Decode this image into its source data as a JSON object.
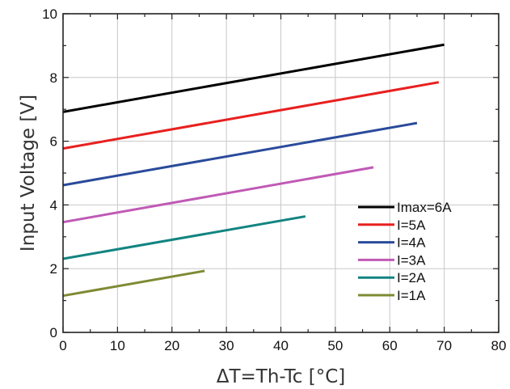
{
  "chart_data": {
    "type": "line",
    "title": "",
    "xlabel": "ΔT=Th-Tc [°C]",
    "ylabel": "Input Voltage [V]",
    "xlim": [
      0,
      80
    ],
    "ylim": [
      0,
      10
    ],
    "x_ticks": [
      "0",
      "10",
      "20",
      "30",
      "40",
      "50",
      "60",
      "70",
      "80"
    ],
    "y_ticks": [
      "0",
      "2",
      "4",
      "6",
      "8",
      "10"
    ],
    "grid": true,
    "legend_position": "bottom-right",
    "series": [
      {
        "name": "Imax=6A",
        "color": "#000000",
        "points": [
          [
            0,
            6.92
          ],
          [
            70,
            9.03
          ]
        ]
      },
      {
        "name": "I=5A",
        "color": "#e8201f",
        "points": [
          [
            0,
            5.77
          ],
          [
            69,
            7.85
          ]
        ]
      },
      {
        "name": "I=4A",
        "color": "#2a4b9b",
        "points": [
          [
            0,
            4.62
          ],
          [
            65,
            6.57
          ]
        ]
      },
      {
        "name": "I=3A",
        "color": "#c05ab5",
        "points": [
          [
            0,
            3.46
          ],
          [
            57,
            5.18
          ]
        ]
      },
      {
        "name": "I=2A",
        "color": "#128481",
        "points": [
          [
            0,
            2.31
          ],
          [
            44.5,
            3.64
          ]
        ]
      },
      {
        "name": "I=1A",
        "color": "#7f8a33",
        "points": [
          [
            0,
            1.15
          ],
          [
            26,
            1.93
          ]
        ]
      }
    ]
  }
}
